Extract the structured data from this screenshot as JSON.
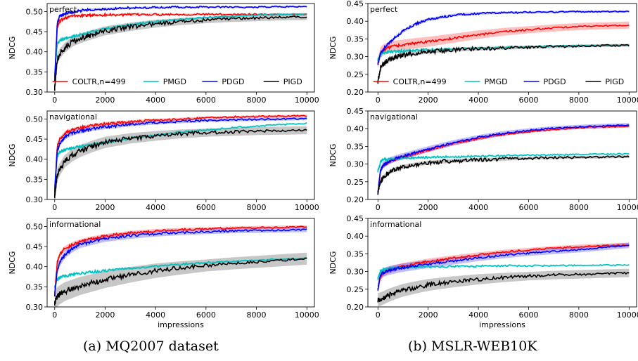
{
  "captions": [
    "(a) MQ2007 dataset",
    "(b) MSLR-WEB10K"
  ],
  "colors": {
    "COLTR": "#ff0000",
    "PMGD": "#00bfbf",
    "PDGD": "#0000ff",
    "PIGD": "#000000"
  },
  "chart_data": [
    {
      "id": "mq-perfect",
      "type": "line",
      "title": "perfect",
      "xlabel": "",
      "ylabel": "NDCG",
      "xlim": [
        -300,
        10300
      ],
      "ylim": [
        0.3,
        0.52
      ],
      "xticks": [
        0,
        2000,
        4000,
        6000,
        8000,
        10000
      ],
      "xticklabels": [
        "0",
        "2000",
        "4000",
        "6000",
        "8000",
        "10000"
      ],
      "yticks": [
        0.3,
        0.35,
        0.4,
        0.45,
        0.5
      ],
      "yticklabels": [
        "0.30",
        "0.35",
        "0.40",
        "0.45",
        "0.50"
      ],
      "legend": {
        "placement": "lower-center",
        "entries": [
          "COLTR,n=499",
          "PMGD",
          "PDGD",
          "PIGD"
        ]
      },
      "x": [
        0,
        100,
        200,
        400,
        700,
        1000,
        1500,
        2000,
        3000,
        4000,
        5000,
        6000,
        7000,
        8000,
        9000,
        10000
      ],
      "series": [
        {
          "name": "COLTR,n=499",
          "key": "COLTR",
          "band": 0.002,
          "values": [
            0.33,
            0.46,
            0.475,
            0.485,
            0.489,
            0.49,
            0.491,
            0.492,
            0.492,
            0.493,
            0.493,
            0.493,
            0.493,
            0.493,
            0.493,
            0.493
          ]
        },
        {
          "name": "PMGD",
          "key": "PMGD",
          "band": 0.002,
          "values": [
            0.34,
            0.42,
            0.428,
            0.432,
            0.437,
            0.442,
            0.45,
            0.457,
            0.467,
            0.475,
            0.48,
            0.485,
            0.488,
            0.491,
            0.493,
            0.494
          ]
        },
        {
          "name": "PDGD",
          "key": "PDGD",
          "band": 0.002,
          "values": [
            0.33,
            0.47,
            0.488,
            0.495,
            0.499,
            0.502,
            0.505,
            0.507,
            0.509,
            0.51,
            0.511,
            0.511,
            0.511,
            0.511,
            0.512,
            0.512
          ]
        },
        {
          "name": "PIGD",
          "key": "PIGD",
          "band": 0.008,
          "values": [
            0.31,
            0.38,
            0.395,
            0.41,
            0.425,
            0.433,
            0.443,
            0.452,
            0.462,
            0.47,
            0.475,
            0.479,
            0.482,
            0.484,
            0.486,
            0.487
          ]
        }
      ]
    },
    {
      "id": "mq-navigational",
      "type": "line",
      "title": "navigational",
      "xlabel": "",
      "ylabel": "NDCG",
      "xlim": [
        -300,
        10300
      ],
      "ylim": [
        0.3,
        0.52
      ],
      "xticks": [
        0,
        2000,
        4000,
        6000,
        8000,
        10000
      ],
      "xticklabels": [
        "0",
        "2000",
        "4000",
        "6000",
        "8000",
        "10000"
      ],
      "yticks": [
        0.3,
        0.35,
        0.4,
        0.45,
        0.5
      ],
      "yticklabels": [
        "0.30",
        "0.35",
        "0.40",
        "0.45",
        "0.50"
      ],
      "x": [
        0,
        100,
        200,
        400,
        700,
        1000,
        1500,
        2000,
        3000,
        4000,
        5000,
        6000,
        7000,
        8000,
        9000,
        10000
      ],
      "series": [
        {
          "name": "COLTR,n=499",
          "key": "COLTR",
          "band": 0.003,
          "values": [
            0.32,
            0.43,
            0.45,
            0.465,
            0.473,
            0.478,
            0.484,
            0.488,
            0.493,
            0.497,
            0.5,
            0.503,
            0.505,
            0.506,
            0.507,
            0.508
          ]
        },
        {
          "name": "PMGD",
          "key": "PMGD",
          "band": 0.002,
          "values": [
            0.33,
            0.41,
            0.418,
            0.423,
            0.428,
            0.432,
            0.437,
            0.442,
            0.452,
            0.46,
            0.467,
            0.473,
            0.478,
            0.482,
            0.486,
            0.489
          ]
        },
        {
          "name": "PDGD",
          "key": "PDGD",
          "band": 0.004,
          "values": [
            0.32,
            0.42,
            0.44,
            0.455,
            0.465,
            0.47,
            0.476,
            0.48,
            0.487,
            0.491,
            0.494,
            0.496,
            0.498,
            0.499,
            0.5,
            0.501
          ]
        },
        {
          "name": "PIGD",
          "key": "PIGD",
          "band": 0.01,
          "values": [
            0.31,
            0.36,
            0.375,
            0.395,
            0.41,
            0.42,
            0.432,
            0.442,
            0.452,
            0.458,
            0.463,
            0.466,
            0.468,
            0.47,
            0.471,
            0.472
          ]
        }
      ]
    },
    {
      "id": "mq-informational",
      "type": "line",
      "title": "informational",
      "xlabel": "impressions",
      "ylabel": "NDCG",
      "xlim": [
        -300,
        10300
      ],
      "ylim": [
        0.3,
        0.52
      ],
      "xticks": [
        0,
        2000,
        4000,
        6000,
        8000,
        10000
      ],
      "xticklabels": [
        "0",
        "2000",
        "4000",
        "6000",
        "8000",
        "10000"
      ],
      "yticks": [
        0.3,
        0.35,
        0.4,
        0.45,
        0.5
      ],
      "yticklabels": [
        "0.30",
        "0.35",
        "0.40",
        "0.45",
        "0.50"
      ],
      "x": [
        0,
        100,
        200,
        400,
        700,
        1000,
        1500,
        2000,
        3000,
        4000,
        5000,
        6000,
        7000,
        8000,
        9000,
        10000
      ],
      "series": [
        {
          "name": "COLTR,n=499",
          "key": "COLTR",
          "band": 0.004,
          "values": [
            0.33,
            0.41,
            0.43,
            0.445,
            0.455,
            0.462,
            0.47,
            0.476,
            0.484,
            0.489,
            0.492,
            0.494,
            0.496,
            0.497,
            0.498,
            0.499
          ]
        },
        {
          "name": "PMGD",
          "key": "PMGD",
          "band": 0.002,
          "values": [
            0.35,
            0.37,
            0.373,
            0.377,
            0.38,
            0.383,
            0.387,
            0.39,
            0.396,
            0.401,
            0.406,
            0.41,
            0.413,
            0.416,
            0.419,
            0.421
          ]
        },
        {
          "name": "PDGD",
          "key": "PDGD",
          "band": 0.006,
          "values": [
            0.33,
            0.39,
            0.41,
            0.43,
            0.445,
            0.455,
            0.463,
            0.47,
            0.477,
            0.482,
            0.485,
            0.487,
            0.489,
            0.49,
            0.491,
            0.492
          ]
        },
        {
          "name": "PIGD",
          "key": "PIGD",
          "band": 0.015,
          "values": [
            0.31,
            0.325,
            0.33,
            0.338,
            0.345,
            0.352,
            0.36,
            0.368,
            0.38,
            0.39,
            0.397,
            0.403,
            0.408,
            0.412,
            0.416,
            0.42
          ]
        }
      ]
    },
    {
      "id": "mslr-perfect",
      "type": "line",
      "title": "perfect",
      "xlabel": "",
      "ylabel": "NDCG",
      "xlim": [
        -400,
        10300
      ],
      "ylim": [
        0.2,
        0.45
      ],
      "xticks": [
        0,
        2000,
        4000,
        6000,
        8000,
        10000
      ],
      "xticklabels": [
        "0",
        "2000",
        "4000",
        "6000",
        "8000",
        "10000"
      ],
      "yticks": [
        0.2,
        0.25,
        0.3,
        0.35,
        0.4,
        0.45
      ],
      "yticklabels": [
        "0.20",
        "0.25",
        "0.30",
        "0.35",
        "0.40",
        "0.45"
      ],
      "legend": {
        "placement": "lower-center",
        "entries": [
          "COLTR,n=499",
          "PMGD",
          "PDGD",
          "PIGD"
        ]
      },
      "x": [
        0,
        100,
        200,
        400,
        700,
        1000,
        1500,
        2000,
        3000,
        4000,
        5000,
        6000,
        7000,
        8000,
        9000,
        10000
      ],
      "series": [
        {
          "name": "COLTR,n=499",
          "key": "COLTR",
          "band": 0.01,
          "values": [
            0.28,
            0.31,
            0.318,
            0.325,
            0.33,
            0.333,
            0.338,
            0.342,
            0.352,
            0.362,
            0.37,
            0.376,
            0.381,
            0.385,
            0.387,
            0.389
          ]
        },
        {
          "name": "PMGD",
          "key": "PMGD",
          "band": 0.002,
          "values": [
            0.29,
            0.305,
            0.31,
            0.313,
            0.315,
            0.316,
            0.318,
            0.32,
            0.322,
            0.324,
            0.326,
            0.328,
            0.33,
            0.331,
            0.332,
            0.333
          ]
        },
        {
          "name": "PDGD",
          "key": "PDGD",
          "band": 0.003,
          "values": [
            0.28,
            0.31,
            0.32,
            0.335,
            0.355,
            0.372,
            0.392,
            0.405,
            0.417,
            0.422,
            0.424,
            0.425,
            0.426,
            0.427,
            0.427,
            0.428
          ]
        },
        {
          "name": "PIGD",
          "key": "PIGD",
          "band": 0.004,
          "values": [
            0.23,
            0.265,
            0.278,
            0.29,
            0.298,
            0.304,
            0.31,
            0.314,
            0.319,
            0.322,
            0.324,
            0.326,
            0.328,
            0.33,
            0.331,
            0.332
          ]
        }
      ]
    },
    {
      "id": "mslr-navigational",
      "type": "line",
      "title": "navigational",
      "xlabel": "",
      "ylabel": "NDCG",
      "xlim": [
        -400,
        10300
      ],
      "ylim": [
        0.2,
        0.45
      ],
      "xticks": [
        0,
        2000,
        4000,
        6000,
        8000,
        10000
      ],
      "xticklabels": [
        "0",
        "2000",
        "4000",
        "6000",
        "8000",
        "10000"
      ],
      "yticks": [
        0.2,
        0.25,
        0.3,
        0.35,
        0.4,
        0.45
      ],
      "yticklabels": [
        "0.20",
        "0.25",
        "0.30",
        "0.35",
        "0.40",
        "0.45"
      ],
      "x": [
        0,
        100,
        200,
        400,
        700,
        1000,
        1500,
        2000,
        3000,
        4000,
        5000,
        6000,
        7000,
        8000,
        9000,
        10000
      ],
      "series": [
        {
          "name": "COLTR,n=499",
          "key": "COLTR",
          "band": 0.004,
          "values": [
            0.22,
            0.28,
            0.295,
            0.305,
            0.314,
            0.32,
            0.33,
            0.34,
            0.358,
            0.372,
            0.384,
            0.392,
            0.398,
            0.403,
            0.405,
            0.407
          ]
        },
        {
          "name": "PMGD",
          "key": "PMGD",
          "band": 0.002,
          "values": [
            0.28,
            0.305,
            0.312,
            0.315,
            0.316,
            0.317,
            0.318,
            0.319,
            0.321,
            0.322,
            0.324,
            0.325,
            0.326,
            0.327,
            0.328,
            0.329
          ]
        },
        {
          "name": "PDGD",
          "key": "PDGD",
          "band": 0.006,
          "values": [
            0.22,
            0.282,
            0.297,
            0.307,
            0.316,
            0.322,
            0.332,
            0.342,
            0.36,
            0.375,
            0.387,
            0.395,
            0.401,
            0.405,
            0.408,
            0.41
          ]
        },
        {
          "name": "PIGD",
          "key": "PIGD",
          "band": 0.004,
          "values": [
            0.22,
            0.25,
            0.262,
            0.275,
            0.285,
            0.292,
            0.299,
            0.304,
            0.309,
            0.312,
            0.314,
            0.316,
            0.318,
            0.319,
            0.32,
            0.321
          ]
        }
      ]
    },
    {
      "id": "mslr-informational",
      "type": "line",
      "title": "informational",
      "xlabel": "impressions",
      "ylabel": "NDCG",
      "xlim": [
        -400,
        10300
      ],
      "ylim": [
        0.2,
        0.45
      ],
      "xticks": [
        0,
        2000,
        4000,
        6000,
        8000,
        10000
      ],
      "xticklabels": [
        "0",
        "2000",
        "4000",
        "6000",
        "8000",
        "10000"
      ],
      "yticks": [
        0.2,
        0.25,
        0.3,
        0.35,
        0.4,
        0.45
      ],
      "yticklabels": [
        "0.20",
        "0.25",
        "0.30",
        "0.35",
        "0.40",
        "0.45"
      ],
      "x": [
        0,
        100,
        200,
        400,
        700,
        1000,
        1500,
        2000,
        3000,
        4000,
        5000,
        6000,
        7000,
        8000,
        9000,
        10000
      ],
      "series": [
        {
          "name": "COLTR,n=499",
          "key": "COLTR",
          "band": 0.006,
          "values": [
            0.25,
            0.285,
            0.295,
            0.303,
            0.31,
            0.315,
            0.322,
            0.328,
            0.338,
            0.347,
            0.355,
            0.361,
            0.366,
            0.37,
            0.373,
            0.375
          ]
        },
        {
          "name": "PMGD",
          "key": "PMGD",
          "band": 0.002,
          "values": [
            0.28,
            0.3,
            0.305,
            0.308,
            0.31,
            0.311,
            0.312,
            0.313,
            0.314,
            0.315,
            0.316,
            0.316,
            0.317,
            0.317,
            0.318,
            0.318
          ]
        },
        {
          "name": "PDGD",
          "key": "PDGD",
          "band": 0.008,
          "values": [
            0.25,
            0.29,
            0.297,
            0.302,
            0.307,
            0.311,
            0.316,
            0.321,
            0.33,
            0.339,
            0.346,
            0.352,
            0.357,
            0.362,
            0.368,
            0.374
          ]
        },
        {
          "name": "PIGD",
          "key": "PIGD",
          "band": 0.012,
          "values": [
            0.22,
            0.222,
            0.225,
            0.232,
            0.24,
            0.247,
            0.255,
            0.262,
            0.271,
            0.278,
            0.283,
            0.287,
            0.29,
            0.292,
            0.294,
            0.296
          ]
        }
      ]
    }
  ]
}
